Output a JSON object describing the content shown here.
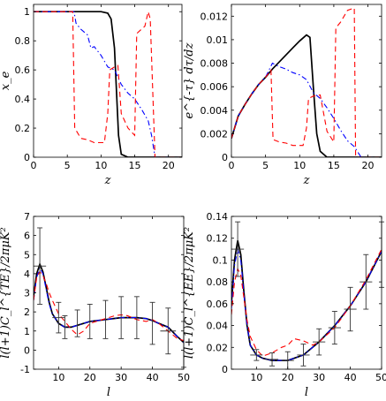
{
  "colors": {
    "black": "#000000",
    "red": "#ff0000",
    "blue": "#0000ff",
    "axis": "#000000",
    "errorbar": "#333333"
  },
  "chart_data": [
    {
      "type": "line",
      "xlabel": "z",
      "ylabel": "x_e",
      "xlim": [
        0,
        22
      ],
      "ylim": [
        0,
        1.05
      ],
      "xticks": [
        0,
        5,
        10,
        15,
        20
      ],
      "yticks": [
        0,
        0.2,
        0.4,
        0.6,
        0.8,
        1
      ],
      "ytick_labels": [
        "0",
        "0.2",
        "0.4",
        "0.6",
        "0.8",
        "1"
      ],
      "series": [
        {
          "style": "solid",
          "color": "#000000",
          "x": [
            0,
            10,
            11,
            11.5,
            12,
            12.3,
            12.6,
            13,
            14,
            22
          ],
          "y": [
            1,
            1,
            0.99,
            0.95,
            0.75,
            0.45,
            0.15,
            0.02,
            0,
            0
          ]
        },
        {
          "style": "dashdot",
          "color": "#0000ff",
          "x": [
            0,
            6,
            6.3,
            7,
            8,
            8.5,
            9,
            10,
            11,
            12,
            13,
            14,
            15,
            16,
            17,
            17.5,
            18,
            22
          ],
          "y": [
            1,
            1,
            0.92,
            0.88,
            0.84,
            0.75,
            0.76,
            0.7,
            0.62,
            0.6,
            0.5,
            0.44,
            0.4,
            0.33,
            0.25,
            0.15,
            0,
            0
          ]
        },
        {
          "style": "dashed",
          "color": "#ff0000",
          "x": [
            0,
            5.8,
            6.1,
            7,
            8,
            9,
            10,
            10.5,
            11,
            11.3,
            12,
            12.5,
            13,
            14,
            15,
            15.3,
            16,
            16.5,
            17,
            17.3,
            18,
            22
          ],
          "y": [
            1,
            1,
            0.2,
            0.13,
            0.12,
            0.1,
            0.1,
            0.1,
            0.3,
            0.6,
            0.62,
            0.63,
            0.3,
            0.2,
            0.15,
            0.85,
            0.88,
            0.9,
            1.0,
            0.95,
            0,
            0
          ]
        }
      ]
    },
    {
      "type": "line",
      "xlabel": "z",
      "ylabel": "e^{-τ} dτ/dz",
      "xlim": [
        0,
        22
      ],
      "ylim": [
        0,
        0.013
      ],
      "xticks": [
        0,
        5,
        10,
        15,
        20
      ],
      "yticks": [
        0,
        0.002,
        0.004,
        0.006,
        0.008,
        0.01,
        0.012
      ],
      "ytick_labels": [
        "0",
        "0.002",
        "0.004",
        "0.006",
        "0.008",
        "0.01",
        "0.012"
      ],
      "series": [
        {
          "style": "solid",
          "color": "#000000",
          "x": [
            0,
            1,
            2,
            3,
            4,
            5,
            6,
            7,
            8,
            9,
            10,
            11,
            11.5,
            12,
            12.5,
            13,
            14,
            22
          ],
          "y": [
            0.0016,
            0.0035,
            0.0045,
            0.0054,
            0.0062,
            0.0068,
            0.0075,
            0.0081,
            0.0087,
            0.0093,
            0.0099,
            0.0104,
            0.0102,
            0.006,
            0.002,
            0.0005,
            0,
            0
          ]
        },
        {
          "style": "dashdot",
          "color": "#0000ff",
          "x": [
            0,
            1,
            2,
            3,
            4,
            5,
            6,
            7,
            8,
            9,
            10,
            11,
            12,
            13,
            14,
            15,
            16,
            17,
            18,
            19,
            22
          ],
          "y": [
            0.0016,
            0.0035,
            0.0045,
            0.0054,
            0.0062,
            0.0068,
            0.008,
            0.0077,
            0.0075,
            0.0072,
            0.007,
            0.0066,
            0.0055,
            0.005,
            0.0042,
            0.0033,
            0.0023,
            0.0014,
            0.0009,
            0,
            0
          ]
        },
        {
          "style": "dashed",
          "color": "#ff0000",
          "x": [
            0,
            1,
            2,
            3,
            4,
            5,
            5.8,
            6.1,
            7,
            8,
            9,
            10,
            10.5,
            11,
            11.3,
            12,
            13,
            14,
            15,
            15.3,
            16,
            17,
            18,
            18.2,
            22
          ],
          "y": [
            0.0016,
            0.0035,
            0.0045,
            0.0054,
            0.0062,
            0.0068,
            0.0074,
            0.0015,
            0.0013,
            0.0012,
            0.001,
            0.001,
            0.001,
            0.0025,
            0.005,
            0.0052,
            0.0053,
            0.0022,
            0.0013,
            0.011,
            0.0115,
            0.0125,
            0.0127,
            0,
            0
          ]
        }
      ]
    },
    {
      "type": "line",
      "xlabel": "l",
      "ylabel": "l(l+1)C_l^{TE}/2πμK²",
      "xlim": [
        2,
        50
      ],
      "ylim": [
        -1,
        7
      ],
      "xticks": [
        10,
        20,
        30,
        40,
        50
      ],
      "yticks": [
        -1,
        0,
        1,
        2,
        3,
        4,
        5,
        6,
        7
      ],
      "ytick_labels": [
        "-1",
        "0",
        "1",
        "2",
        "3",
        "4",
        "5",
        "6",
        "7"
      ],
      "series": [
        {
          "style": "solid",
          "color": "#000000",
          "x": [
            2,
            3,
            4,
            5,
            6,
            7,
            8,
            10,
            12,
            14,
            16,
            20,
            25,
            30,
            35,
            38,
            40,
            42,
            45,
            48,
            50
          ],
          "y": [
            2.8,
            4.0,
            4.5,
            4.1,
            3.3,
            2.5,
            1.9,
            1.4,
            1.2,
            1.2,
            1.3,
            1.5,
            1.6,
            1.7,
            1.7,
            1.65,
            1.55,
            1.4,
            1.2,
            0.7,
            0.4
          ]
        },
        {
          "style": "dashdot",
          "color": "#0000ff",
          "x": [
            2,
            3,
            4,
            5,
            6,
            7,
            8,
            10,
            12,
            14,
            16,
            20,
            25,
            30,
            35,
            38,
            40,
            42,
            45,
            48,
            50
          ],
          "y": [
            2.6,
            3.8,
            4.3,
            4.0,
            3.2,
            2.4,
            1.9,
            1.4,
            1.2,
            1.2,
            1.3,
            1.5,
            1.6,
            1.7,
            1.7,
            1.65,
            1.55,
            1.4,
            1.2,
            0.7,
            0.4
          ]
        },
        {
          "style": "dashed",
          "color": "#ff0000",
          "x": [
            2,
            3,
            4,
            5,
            6,
            7,
            8,
            10,
            12,
            14,
            16,
            18,
            20,
            24,
            28,
            30,
            32,
            35,
            38,
            40,
            42,
            45,
            48,
            50
          ],
          "y": [
            2.6,
            3.8,
            4.1,
            3.9,
            3.5,
            3.0,
            2.6,
            1.9,
            1.5,
            1.1,
            0.8,
            1.0,
            1.4,
            1.6,
            1.8,
            1.85,
            1.8,
            1.6,
            1.5,
            1.6,
            1.4,
            1.0,
            0.6,
            0.5
          ]
        }
      ],
      "points": {
        "x": [
          4,
          10,
          12,
          16,
          20,
          25,
          30,
          35,
          40,
          45,
          50
        ],
        "y": [
          4.4,
          1.7,
          1.2,
          1.4,
          1.5,
          1.6,
          1.7,
          1.7,
          1.4,
          1.0,
          0.3
        ],
        "yerr": [
          2.0,
          0.8,
          0.6,
          0.7,
          0.9,
          1.0,
          1.1,
          1.1,
          1.1,
          1.2,
          1.2
        ],
        "xerr": [
          2,
          2,
          0,
          0,
          0,
          0,
          0,
          0,
          0,
          2.5,
          0
        ]
      }
    },
    {
      "type": "line",
      "xlabel": "l",
      "ylabel": "l(l+1)C_l^{EE}/2πμK²",
      "xlim": [
        2,
        50
      ],
      "ylim": [
        0,
        0.14
      ],
      "xticks": [
        10,
        20,
        30,
        40,
        50
      ],
      "yticks": [
        0,
        0.02,
        0.04,
        0.06,
        0.08,
        0.1,
        0.12,
        0.14
      ],
      "ytick_labels": [
        "0",
        "0.02",
        "0.04",
        "0.06",
        "0.08",
        "0.1",
        "0.12",
        "0.14"
      ],
      "series": [
        {
          "style": "solid",
          "color": "#000000",
          "x": [
            2,
            3,
            4,
            5,
            6,
            7,
            8,
            10,
            12,
            15,
            20,
            25,
            30,
            35,
            40,
            45,
            50
          ],
          "y": [
            0.06,
            0.1,
            0.118,
            0.105,
            0.07,
            0.04,
            0.022,
            0.013,
            0.01,
            0.008,
            0.008,
            0.013,
            0.025,
            0.04,
            0.058,
            0.08,
            0.108
          ]
        },
        {
          "style": "dashdot",
          "color": "#0000ff",
          "x": [
            2,
            3,
            4,
            5,
            6,
            7,
            8,
            10,
            12,
            15,
            20,
            25,
            30,
            35,
            40,
            45,
            50
          ],
          "y": [
            0.055,
            0.095,
            0.11,
            0.1,
            0.068,
            0.04,
            0.022,
            0.013,
            0.01,
            0.008,
            0.008,
            0.013,
            0.025,
            0.04,
            0.058,
            0.08,
            0.108
          ]
        },
        {
          "style": "dashed",
          "color": "#ff0000",
          "x": [
            2,
            3,
            4,
            5,
            6,
            7,
            8,
            10,
            12,
            15,
            18,
            20,
            22,
            25,
            28,
            30,
            35,
            40,
            45,
            50
          ],
          "y": [
            0.05,
            0.08,
            0.092,
            0.086,
            0.065,
            0.045,
            0.03,
            0.018,
            0.012,
            0.015,
            0.02,
            0.022,
            0.028,
            0.026,
            0.022,
            0.025,
            0.038,
            0.058,
            0.082,
            0.11
          ]
        }
      ],
      "points": {
        "x": [
          4,
          10,
          15,
          20,
          25,
          30,
          35,
          40,
          45,
          50
        ],
        "y": [
          0.11,
          0.013,
          0.009,
          0.008,
          0.013,
          0.025,
          0.038,
          0.055,
          0.08,
          0.105
        ],
        "yerr": [
          0.025,
          0.005,
          0.006,
          0.008,
          0.01,
          0.012,
          0.015,
          0.02,
          0.025,
          0.03
        ],
        "xerr": [
          2,
          2,
          2,
          2,
          2,
          2,
          2,
          2,
          2,
          0
        ]
      }
    }
  ]
}
